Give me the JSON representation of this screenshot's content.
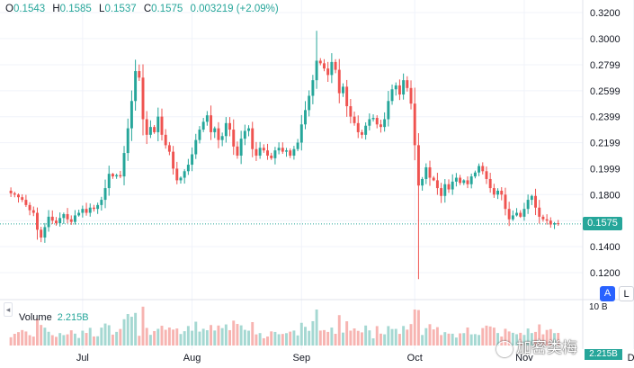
{
  "ohlc": {
    "o_label": "O",
    "o": "0.1543",
    "h_label": "H",
    "h": "0.1585",
    "l_label": "L",
    "l": "0.1537",
    "c_label": "C",
    "c": "0.1575",
    "change": "0.003219 (+2.09%)"
  },
  "price_tag": "0.1575",
  "volume": {
    "label": "Volume",
    "value": "2.215B",
    "axis_label": "10 B",
    "tag": "2.215B"
  },
  "buttons": {
    "auto": "A",
    "log": "L"
  },
  "watermark": "加密类梅",
  "colors": {
    "up": "#26a69a",
    "down": "#ef5350",
    "up_volume": "#a5d8d2",
    "down_volume": "#f7b4b1"
  },
  "chart_data": {
    "type": "candlestick",
    "title": "",
    "ylabel": "",
    "ylim": [
      0.1,
      0.32
    ],
    "y_ticks": [
      "0.3200",
      "0.3000",
      "0.2799",
      "0.2599",
      "0.2399",
      "0.2199",
      "0.1999",
      "0.1800",
      "0.1600",
      "0.1400",
      "0.1200"
    ],
    "y_tick_values": [
      0.32,
      0.3,
      0.2799,
      0.2599,
      0.2399,
      0.2199,
      0.1999,
      0.18,
      0.16,
      0.14,
      0.12
    ],
    "x_tick_labels": [
      "Jul",
      "Aug",
      "Sep",
      "Oct",
      "Nov",
      "De"
    ],
    "x_tick_index": [
      19,
      48,
      77,
      107,
      136,
      165
    ],
    "current_price": 0.1575,
    "grid": true,
    "closes": [
      0.181,
      0.18,
      0.178,
      0.176,
      0.172,
      0.168,
      0.166,
      0.153,
      0.147,
      0.155,
      0.163,
      0.16,
      0.158,
      0.162,
      0.165,
      0.161,
      0.159,
      0.164,
      0.166,
      0.169,
      0.166,
      0.17,
      0.169,
      0.172,
      0.176,
      0.185,
      0.196,
      0.194,
      0.195,
      0.194,
      0.212,
      0.231,
      0.252,
      0.275,
      0.27,
      0.238,
      0.226,
      0.232,
      0.228,
      0.24,
      0.226,
      0.218,
      0.213,
      0.2,
      0.191,
      0.193,
      0.198,
      0.203,
      0.211,
      0.222,
      0.23,
      0.236,
      0.241,
      0.228,
      0.231,
      0.222,
      0.225,
      0.235,
      0.23,
      0.217,
      0.21,
      0.223,
      0.229,
      0.231,
      0.215,
      0.21,
      0.216,
      0.214,
      0.21,
      0.208,
      0.214,
      0.216,
      0.213,
      0.214,
      0.21,
      0.215,
      0.22,
      0.234,
      0.245,
      0.256,
      0.268,
      0.283,
      0.281,
      0.277,
      0.272,
      0.282,
      0.276,
      0.258,
      0.263,
      0.248,
      0.24,
      0.235,
      0.228,
      0.226,
      0.233,
      0.238,
      0.239,
      0.234,
      0.232,
      0.238,
      0.252,
      0.261,
      0.264,
      0.257,
      0.268,
      0.262,
      0.25,
      0.218,
      0.187,
      0.192,
      0.201,
      0.193,
      0.191,
      0.185,
      0.179,
      0.188,
      0.184,
      0.19,
      0.193,
      0.189,
      0.191,
      0.188,
      0.194,
      0.197,
      0.202,
      0.198,
      0.192,
      0.185,
      0.18,
      0.183,
      0.18,
      0.169,
      0.161,
      0.164,
      0.166,
      0.163,
      0.169,
      0.176,
      0.179,
      0.17,
      0.163,
      0.161,
      0.16,
      0.157,
      0.158,
      0.1575
    ]
  }
}
